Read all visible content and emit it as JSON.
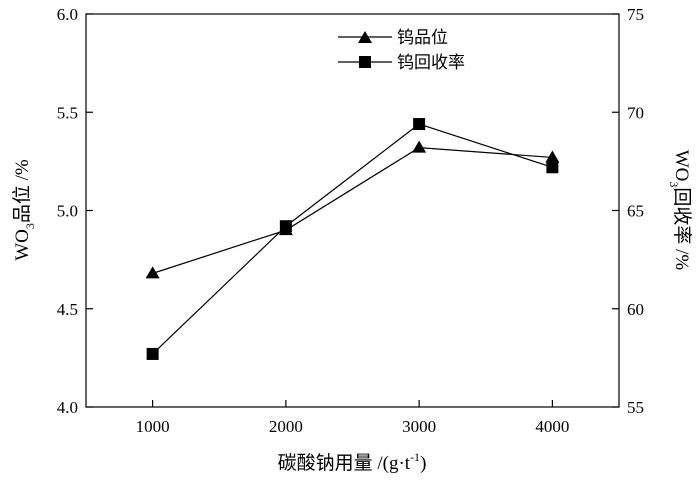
{
  "chart_data": {
    "type": "line",
    "x": [
      1000,
      2000,
      3000,
      4000
    ],
    "xlabel_main": "碳酸钠用量 /(g·t",
    "xlabel_sup": "-1",
    "xlabel_close": ")",
    "xlim": [
      500,
      4500
    ],
    "xticks": [
      "1000",
      "2000",
      "3000",
      "4000"
    ],
    "ylabel_left": {
      "pre": "WO",
      "sub": "3",
      "post": "品位 /%"
    },
    "ylim_left": [
      4.0,
      6.0
    ],
    "yticks_left": [
      "4.0",
      "4.5",
      "5.0",
      "5.5",
      "6.0"
    ],
    "ylabel_right": {
      "pre": "WO",
      "sub": "3",
      "post": "回收率 /%"
    },
    "ylim_right": [
      55,
      75
    ],
    "yticks_right": [
      "55",
      "60",
      "65",
      "70",
      "75"
    ],
    "series": [
      {
        "name": "钨品位",
        "marker": "triangle",
        "axis": "left",
        "values": [
          4.68,
          4.9,
          5.32,
          5.27
        ]
      },
      {
        "name": "钨回收率",
        "marker": "square",
        "axis": "right",
        "values": [
          57.7,
          64.2,
          69.4,
          67.2
        ]
      }
    ],
    "legend_position": "top-center",
    "grid": false,
    "colors": {
      "line": "#000000",
      "marker": "#000000"
    }
  }
}
